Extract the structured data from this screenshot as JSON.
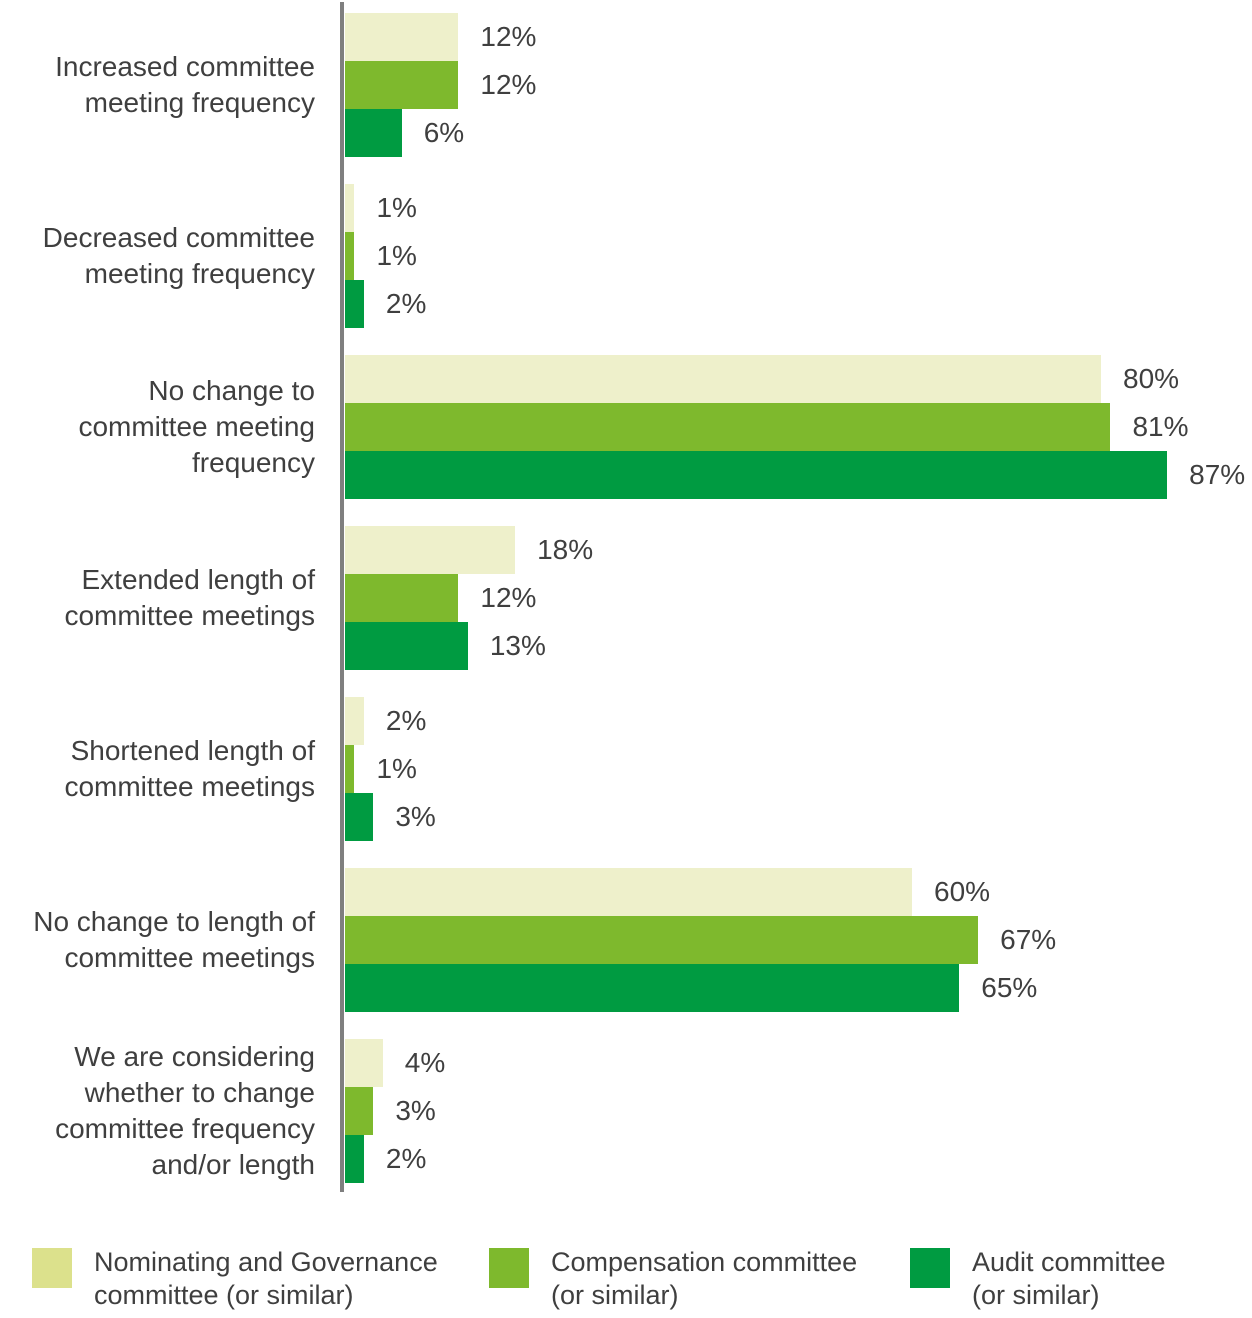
{
  "chart_data": {
    "type": "bar",
    "orientation": "horizontal",
    "title": "",
    "xlabel": "",
    "ylabel": "",
    "value_suffix": "%",
    "xlim": [
      0,
      96
    ],
    "grid": false,
    "legend_position": "bottom",
    "text_color": "#3f3f3f",
    "axis_color": "#7f7f7f",
    "categories": [
      {
        "label": "Increased committee meeting frequency",
        "lines": [
          "Increased committee",
          "meeting frequency"
        ]
      },
      {
        "label": "Decreased committee meeting frequency",
        "lines": [
          "Decreased committee",
          "meeting frequency"
        ]
      },
      {
        "label": "No change to committee meeting frequency",
        "lines": [
          "No change to",
          "committee meeting",
          "frequency"
        ]
      },
      {
        "label": "Extended length of committee meetings",
        "lines": [
          "Extended length of",
          "committee meetings"
        ]
      },
      {
        "label": "Shortened length of committee meetings",
        "lines": [
          "Shortened length of",
          "committee meetings"
        ]
      },
      {
        "label": "No change to length of committee meetings",
        "lines": [
          "No change to length of",
          "committee meetings"
        ]
      },
      {
        "label": "We are considering whether to change committee frequency and/or length",
        "lines": [
          "We are considering",
          "whether to change",
          "committee frequency",
          "and/or length"
        ]
      }
    ],
    "series": [
      {
        "name": "Nominating and Governance committee (or similar)",
        "legend_lines": [
          "Nominating and Governance",
          "committee (or similar)"
        ],
        "bar_color": "#eef0cb",
        "legend_color": "#dce18c",
        "values": [
          12,
          1,
          80,
          18,
          2,
          60,
          4
        ],
        "value_labels": [
          "12%",
          "1%",
          "80%",
          "18%",
          "2%",
          "60%",
          "4%"
        ]
      },
      {
        "name": "Compensation committee (or similar)",
        "legend_lines": [
          "Compensation committee",
          "(or similar)"
        ],
        "bar_color": "#7eb92d",
        "legend_color": "#7eb92d",
        "values": [
          12,
          1,
          81,
          12,
          1,
          67,
          3
        ],
        "value_labels": [
          "12%",
          "1%",
          "81%",
          "12%",
          "1%",
          "67%",
          "3%"
        ]
      },
      {
        "name": "Audit committee (or similar)",
        "legend_lines": [
          "Audit committee",
          "(or similar)"
        ],
        "bar_color": "#009b41",
        "legend_color": "#009b41",
        "values": [
          6,
          2,
          87,
          13,
          3,
          65,
          2
        ],
        "value_labels": [
          "6%",
          "2%",
          "87%",
          "13%",
          "3%",
          "65%",
          "2%"
        ]
      }
    ]
  }
}
